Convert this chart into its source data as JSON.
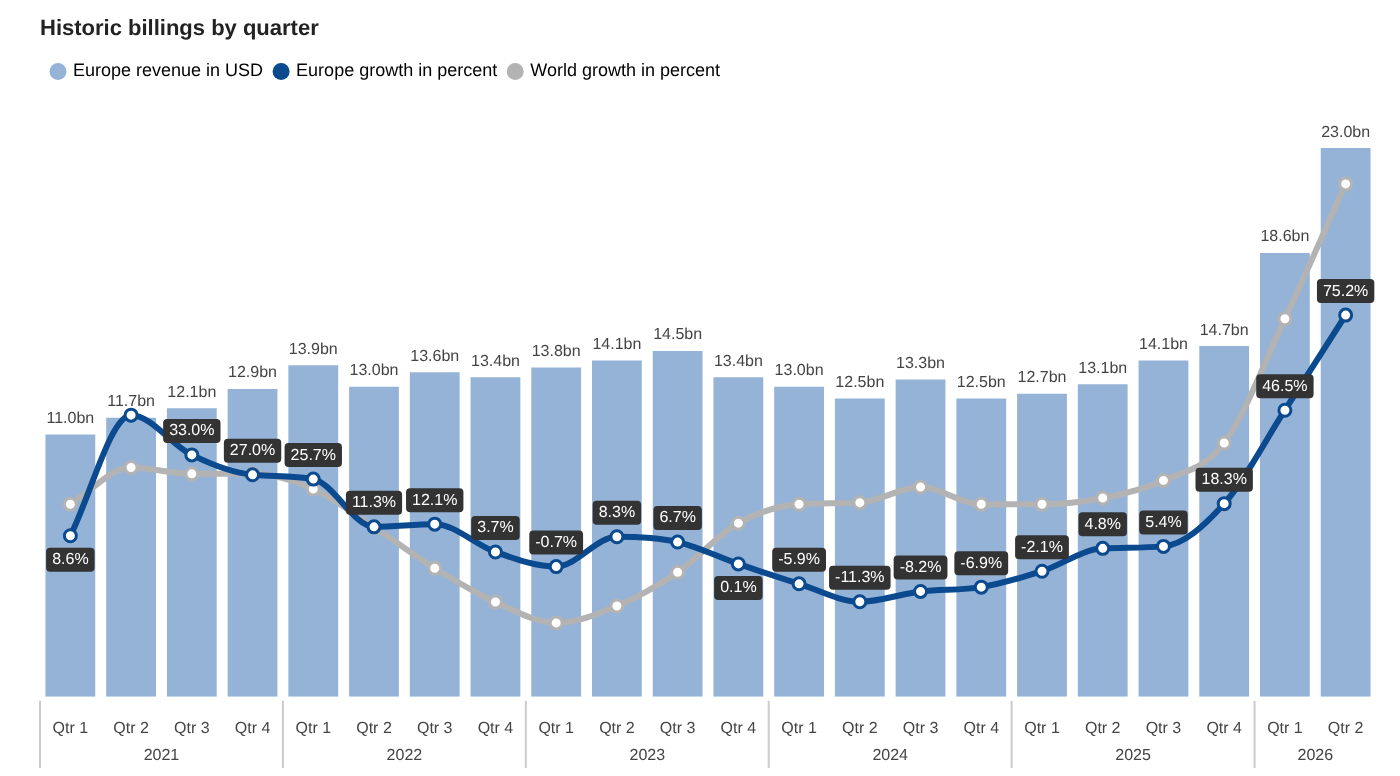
{
  "chart_data": {
    "type": "bar",
    "title": "Historic billings by quarter",
    "categories": [
      "Qtr 1",
      "Qtr 2",
      "Qtr 3",
      "Qtr 4",
      "Qtr 1",
      "Qtr 2",
      "Qtr 3",
      "Qtr 4",
      "Qtr 1",
      "Qtr 2",
      "Qtr 3",
      "Qtr 4",
      "Qtr 1",
      "Qtr 2",
      "Qtr 3",
      "Qtr 4",
      "Qtr 1",
      "Qtr 2",
      "Qtr 3",
      "Qtr 4",
      "Qtr 1",
      "Qtr 2"
    ],
    "annotations": [
      "2021",
      "2022",
      "2023",
      "2024",
      "2025",
      "2026"
    ],
    "tick_labels": "x",
    "grid": false,
    "legend": "top left",
    "marker": "circle",
    "series": [
      {
        "name": "Europe revenue in USD",
        "color": "#95b3d7",
        "values": [
          11.0,
          11.7,
          12.1,
          12.9,
          13.9,
          13.0,
          13.6,
          13.4,
          13.8,
          14.1,
          14.5,
          13.4,
          13.0,
          12.5,
          13.3,
          12.5,
          12.7,
          13.1,
          14.1,
          14.7,
          18.6,
          23.0
        ],
        "value_labels": [
          "11.0bn",
          "11.7bn",
          "12.1bn",
          "12.9bn",
          "13.9bn",
          "13.0bn",
          "13.6bn",
          "13.4bn",
          "13.8bn",
          "14.1bn",
          "14.5bn",
          "13.4bn",
          "13.0bn",
          "12.5bn",
          "13.3bn",
          "12.5bn",
          "12.7bn",
          "13.1bn",
          "14.1bn",
          "14.7bn",
          "18.6bn",
          "23.0bn"
        ]
      },
      {
        "name": "Europe growth in percent",
        "type": "line",
        "axis": "y2",
        "color": "#0b4a8f",
        "values": [
          8.6,
          45,
          33.0,
          27.0,
          25.7,
          11.3,
          12.1,
          3.7,
          -0.7,
          8.3,
          6.7,
          0.1,
          -5.9,
          -11.3,
          -8.2,
          -6.9,
          -2.1,
          4.8,
          5.4,
          18.3,
          46.5,
          75.2
        ],
        "value_labels": [
          "8.6%",
          null,
          "33.0%",
          "27.0%",
          "25.7%",
          "11.3%",
          "12.1%",
          "3.7%",
          "-0.7%",
          "8.3%",
          "6.7%",
          "0.1%",
          "-5.9%",
          "-11.3%",
          "-8.2%",
          "-6.9%",
          "-2.1%",
          "4.8%",
          "5.4%",
          "18.3%",
          "46.5%",
          "75.2%"
        ]
      },
      {
        "name": "World growth in percent",
        "type": "line",
        "axis": "y2",
        "color": "#b3b3b3",
        "values": [
          18.1,
          29.2,
          27.3,
          27.3,
          22.7,
          11.2,
          -1.2,
          -11.4,
          -17.7,
          -12.6,
          -2.4,
          12.4,
          18.1,
          18.6,
          23.3,
          18.1,
          18.1,
          20.0,
          25.3,
          36.6,
          74.1,
          114.8
        ]
      }
    ]
  }
}
